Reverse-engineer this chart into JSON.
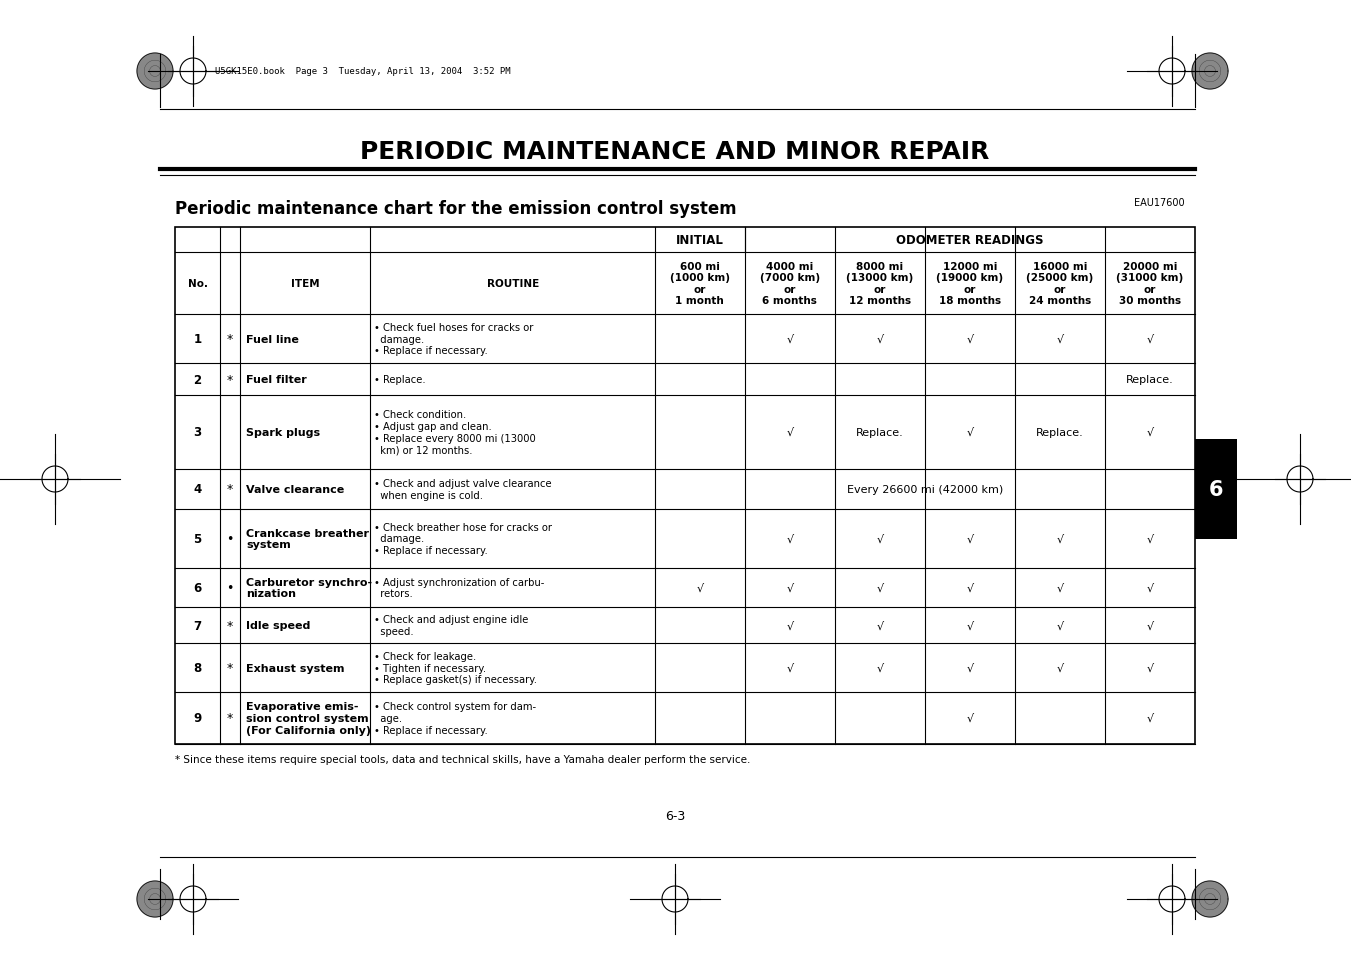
{
  "page_title": "PERIODIC MAINTENANCE AND MINOR REPAIR",
  "section_ref": "EAU17600",
  "subtitle": "Periodic maintenance chart for the emission control system",
  "footnote": "* Since these items require special tools, data and technical skills, have a Yamaha dealer perform the service.",
  "page_number": "6-3",
  "file_ref": "U5GK15E0.book  Page 3  Tuesday, April 13, 2004  3:52 PM",
  "rows": [
    {
      "no": "1",
      "star": "*",
      "item": "Fuel line",
      "routine": "• Check fuel hoses for cracks or\n  damage.\n• Replace if necessary.",
      "c600": "",
      "c4000": "√",
      "c8000": "√",
      "c12000": "√",
      "c16000": "√",
      "c20000": "√"
    },
    {
      "no": "2",
      "star": "*",
      "item": "Fuel filter",
      "routine": "• Replace.",
      "c600": "",
      "c4000": "",
      "c8000": "",
      "c12000": "",
      "c16000": "",
      "c20000": "Replace."
    },
    {
      "no": "3",
      "star": "",
      "item": "Spark plugs",
      "routine": "• Check condition.\n• Adjust gap and clean.\n• Replace every 8000 mi (13000\n  km) or 12 months.",
      "c600": "",
      "c4000": "√",
      "c8000": "Replace.",
      "c12000": "√",
      "c16000": "Replace.",
      "c20000": "√"
    },
    {
      "no": "4",
      "star": "*",
      "item": "Valve clearance",
      "routine": "• Check and adjust valve clearance\n  when engine is cold.",
      "c600": "SPAN:Every 26600 mi (42000 km)",
      "c4000": "",
      "c8000": "",
      "c12000": "",
      "c16000": "",
      "c20000": ""
    },
    {
      "no": "5",
      "star": ".",
      "item": "Crankcase breather\nsystem",
      "routine": "• Check breather hose for cracks or\n  damage.\n• Replace if necessary.",
      "c600": "",
      "c4000": "√",
      "c8000": "√",
      "c12000": "√",
      "c16000": "√",
      "c20000": "√"
    },
    {
      "no": "6",
      "star": ".",
      "item": "Carburetor synchro-\nnization",
      "routine": "• Adjust synchronization of carbu-\n  retors.",
      "c600": "√",
      "c4000": "√",
      "c8000": "√",
      "c12000": "√",
      "c16000": "√",
      "c20000": "√"
    },
    {
      "no": "7",
      "star": "*",
      "item": "Idle speed",
      "routine": "• Check and adjust engine idle\n  speed.",
      "c600": "",
      "c4000": "√",
      "c8000": "√",
      "c12000": "√",
      "c16000": "√",
      "c20000": "√"
    },
    {
      "no": "8",
      "star": "*",
      "item": "Exhaust system",
      "routine": "• Check for leakage.\n• Tighten if necessary.\n• Replace gasket(s) if necessary.",
      "c600": "",
      "c4000": "√",
      "c8000": "√",
      "c12000": "√",
      "c16000": "√",
      "c20000": "√"
    },
    {
      "no": "9",
      "star": "*",
      "item": "Evaporative emis-\nsion control system\n(For California only)",
      "routine": "• Check control system for dam-\n  age.\n• Replace if necessary.",
      "c600": "",
      "c4000": "",
      "c8000": "",
      "c12000": "√",
      "c16000": "",
      "c20000": "√"
    }
  ]
}
